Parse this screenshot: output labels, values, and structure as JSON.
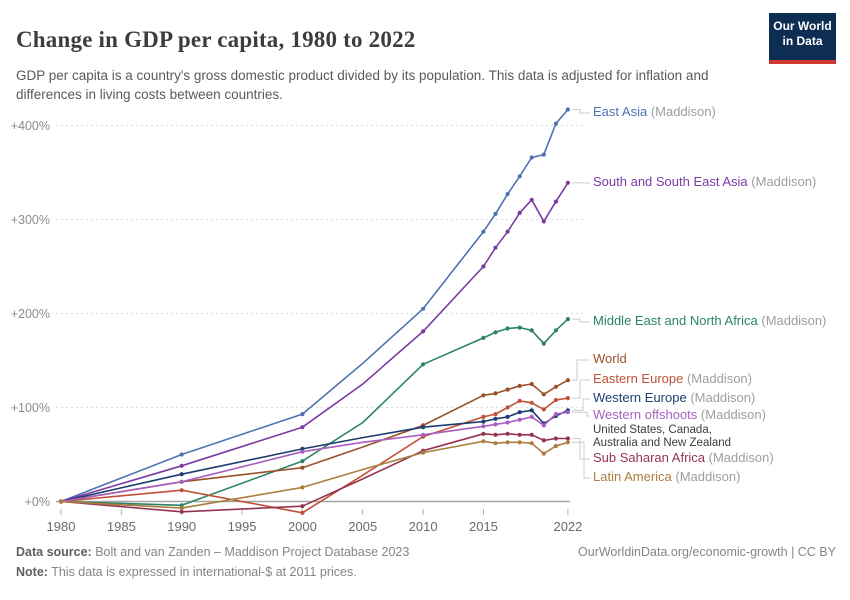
{
  "header": {
    "title": "Change in GDP per capita, 1980 to 2022",
    "subtitle": "GDP per capita is a country's gross domestic product divided by its population. This data is adjusted for inflation and differences in living costs between countries.",
    "logo_line1": "Our World",
    "logo_line2": "in Data",
    "logo_bg": "#0d2d52",
    "logo_stripe": "#d0392e"
  },
  "chart_data": {
    "type": "line",
    "title": "Change in GDP per capita, 1980 to 2022",
    "xlabel": "",
    "ylabel": "",
    "x": [
      1980,
      1990,
      2000,
      2005,
      2010,
      2015,
      2016,
      2017,
      2018,
      2019,
      2020,
      2021,
      2022
    ],
    "marker_years": [
      1980,
      1990,
      2000,
      2010,
      2015,
      2016,
      2017,
      2018,
      2019,
      2020,
      2021,
      2022
    ],
    "xticks": [
      1980,
      1985,
      1990,
      1995,
      2000,
      2005,
      2010,
      2015,
      2022
    ],
    "yticks": [
      {
        "label": "+400%",
        "value": 400
      },
      {
        "label": "+300%",
        "value": 300
      },
      {
        "label": "+200%",
        "value": 200
      },
      {
        "label": "+100%",
        "value": 100
      },
      {
        "label": "+0%",
        "value": 0
      }
    ],
    "xlim": [
      1980,
      2022
    ],
    "ylim": [
      -15,
      440
    ],
    "grid": "horizontal-dashed",
    "legend_position": "right-of-line-ends",
    "series": [
      {
        "name": "East Asia",
        "suffix": "(Maddison)",
        "color": "#4e73b0",
        "values": [
          0,
          50,
          93,
          147,
          205,
          287,
          306,
          327,
          346,
          366,
          369,
          402,
          417
        ]
      },
      {
        "name": "South and South East Asia",
        "suffix": "(Maddison)",
        "color": "#7a3ba3",
        "values": [
          0,
          38,
          79,
          125,
          181,
          250,
          270,
          287,
          307,
          321,
          298,
          319,
          339
        ]
      },
      {
        "name": "Middle East and North Africa",
        "suffix": "(Maddison)",
        "color": "#2c8465",
        "values": [
          0,
          -4,
          43,
          84,
          146,
          174,
          180,
          184,
          185,
          182,
          168,
          182,
          194
        ]
      },
      {
        "name": "World",
        "suffix": "",
        "color": "#9a5129",
        "values": [
          0,
          21,
          36,
          58,
          81,
          113,
          115,
          119,
          123,
          125,
          114,
          122,
          129
        ]
      },
      {
        "name": "Eastern Europe",
        "suffix": "(Maddison)",
        "color": "#c05138",
        "values": [
          0,
          12,
          -12,
          28,
          69,
          90,
          93,
          100,
          107,
          105,
          98,
          108,
          110
        ]
      },
      {
        "name": "Western Europe",
        "suffix": "(Maddison)",
        "color": "#1d3d70",
        "values": [
          0,
          29,
          56,
          68,
          79,
          85,
          88,
          90,
          95,
          97,
          83,
          91,
          97
        ]
      },
      {
        "name": "Western offshoots",
        "suffix": "(Maddison)",
        "color": "#a85fc0",
        "sublabel": [
          "United States, Canada,",
          "Australia and New Zealand"
        ],
        "values": [
          0,
          21,
          53,
          63,
          71,
          80,
          82,
          84,
          87,
          90,
          81,
          93,
          95
        ]
      },
      {
        "name": "Sub Saharan Africa",
        "suffix": "(Maddison)",
        "color": "#94344f",
        "values": [
          0,
          -11,
          -5,
          24,
          54,
          72,
          71,
          72,
          71,
          71,
          65,
          67,
          67
        ]
      },
      {
        "name": "Latin America",
        "suffix": "(Maddison)",
        "color": "#ab7d3f",
        "values": [
          0,
          -7,
          15,
          34,
          52,
          64,
          62,
          63,
          63,
          62,
          51,
          59,
          63
        ]
      }
    ]
  },
  "footer": {
    "source_label": "Data source:",
    "source_text": " Bolt and van Zanden – Maddison Project Database 2023",
    "note_label": "Note:",
    "note_text": " This data is expressed in international-$ at 2011 prices.",
    "link": "OurWorldinData.org/economic-growth | CC BY"
  }
}
